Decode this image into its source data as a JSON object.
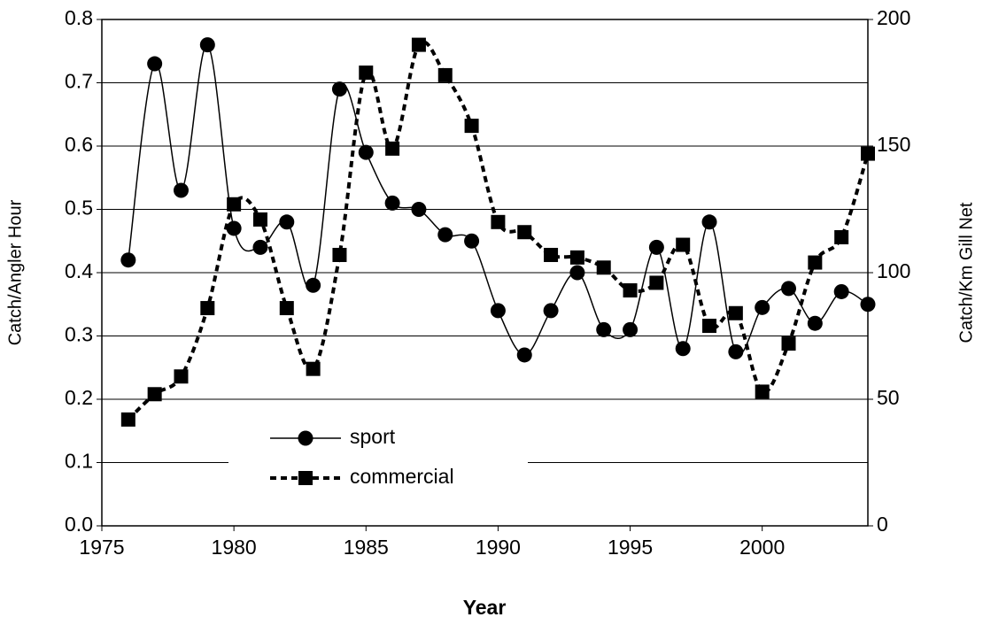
{
  "chart_data": {
    "type": "line",
    "x_label": "Year",
    "y_label": "Catch/Angler Hour",
    "y2_label": "Catch/Km Gill Net",
    "x": [
      1976,
      1977,
      1978,
      1979,
      1980,
      1981,
      1982,
      1983,
      1984,
      1985,
      1986,
      1987,
      1988,
      1989,
      1990,
      1991,
      1992,
      1993,
      1994,
      1995,
      1996,
      1997,
      1998,
      1999,
      2000,
      2001,
      2002,
      2003,
      2004
    ],
    "series": [
      {
        "name": "sport",
        "color": "#000000",
        "values": [
          0.42,
          0.73,
          0.53,
          0.76,
          0.47,
          0.44,
          0.48,
          0.38,
          0.69,
          0.59,
          0.51,
          0.5,
          0.46,
          0.45,
          0.34,
          0.27,
          0.34,
          0.4,
          0.31,
          0.31,
          0.44,
          0.28,
          0.48,
          0.275,
          0.345,
          0.375,
          0.32,
          0.37,
          0.35
        ]
      },
      {
        "name": "commercial",
        "color": "#000000",
        "axis": "y2",
        "values": [
          42,
          52,
          59,
          86,
          127,
          121,
          86,
          62,
          107,
          179,
          149,
          190,
          178,
          158,
          120,
          116,
          107,
          106,
          102,
          93,
          96,
          111,
          79,
          84,
          53,
          72,
          104,
          114,
          147
        ]
      }
    ],
    "xlim": [
      1975,
      2004
    ],
    "xticks": [
      1975,
      1980,
      1985,
      1990,
      1995,
      2000
    ],
    "ylim": [
      0,
      0.8
    ],
    "yticks": [
      {
        "value": 0,
        "label": "0.0"
      },
      0.1,
      0.2,
      0.3,
      0.4,
      0.5,
      0.6,
      0.7,
      0.8
    ],
    "y2lim": [
      0,
      200
    ],
    "y2ticks": [
      0,
      50,
      100,
      150,
      200
    ],
    "grid": true,
    "legend": "lower center"
  }
}
